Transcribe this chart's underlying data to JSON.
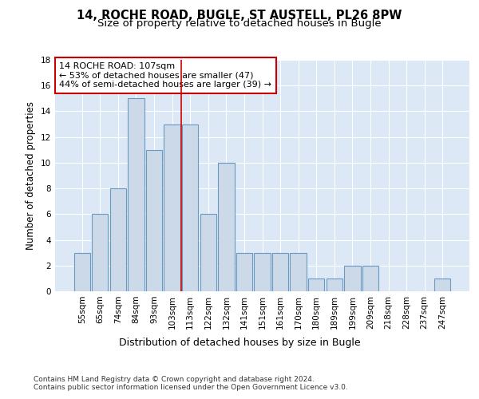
{
  "title": "14, ROCHE ROAD, BUGLE, ST AUSTELL, PL26 8PW",
  "subtitle": "Size of property relative to detached houses in Bugle",
  "xlabel": "Distribution of detached houses by size in Bugle",
  "ylabel": "Number of detached properties",
  "bar_labels": [
    "55sqm",
    "65sqm",
    "74sqm",
    "84sqm",
    "93sqm",
    "103sqm",
    "113sqm",
    "122sqm",
    "132sqm",
    "141sqm",
    "151sqm",
    "161sqm",
    "170sqm",
    "180sqm",
    "189sqm",
    "199sqm",
    "209sqm",
    "218sqm",
    "228sqm",
    "237sqm",
    "247sqm"
  ],
  "bar_values": [
    3,
    6,
    8,
    15,
    11,
    13,
    13,
    6,
    10,
    3,
    3,
    3,
    3,
    1,
    1,
    2,
    2,
    0,
    0,
    0,
    1
  ],
  "bar_color": "#ccd9e8",
  "bar_edge_color": "#6a9abf",
  "background_color": "#dce8f5",
  "grid_color": "#ffffff",
  "annotation_text": "14 ROCHE ROAD: 107sqm\n← 53% of detached houses are smaller (47)\n44% of semi-detached houses are larger (39) →",
  "annotation_box_color": "#ffffff",
  "annotation_box_edge_color": "#cc0000",
  "red_line_x": 5.5,
  "ylim": [
    0,
    18
  ],
  "yticks": [
    0,
    2,
    4,
    6,
    8,
    10,
    12,
    14,
    16,
    18
  ],
  "footer_text": "Contains HM Land Registry data © Crown copyright and database right 2024.\nContains public sector information licensed under the Open Government Licence v3.0.",
  "title_fontsize": 10.5,
  "subtitle_fontsize": 9.5,
  "xlabel_fontsize": 9,
  "ylabel_fontsize": 8.5,
  "tick_fontsize": 7.5,
  "annotation_fontsize": 8,
  "footer_fontsize": 6.5
}
